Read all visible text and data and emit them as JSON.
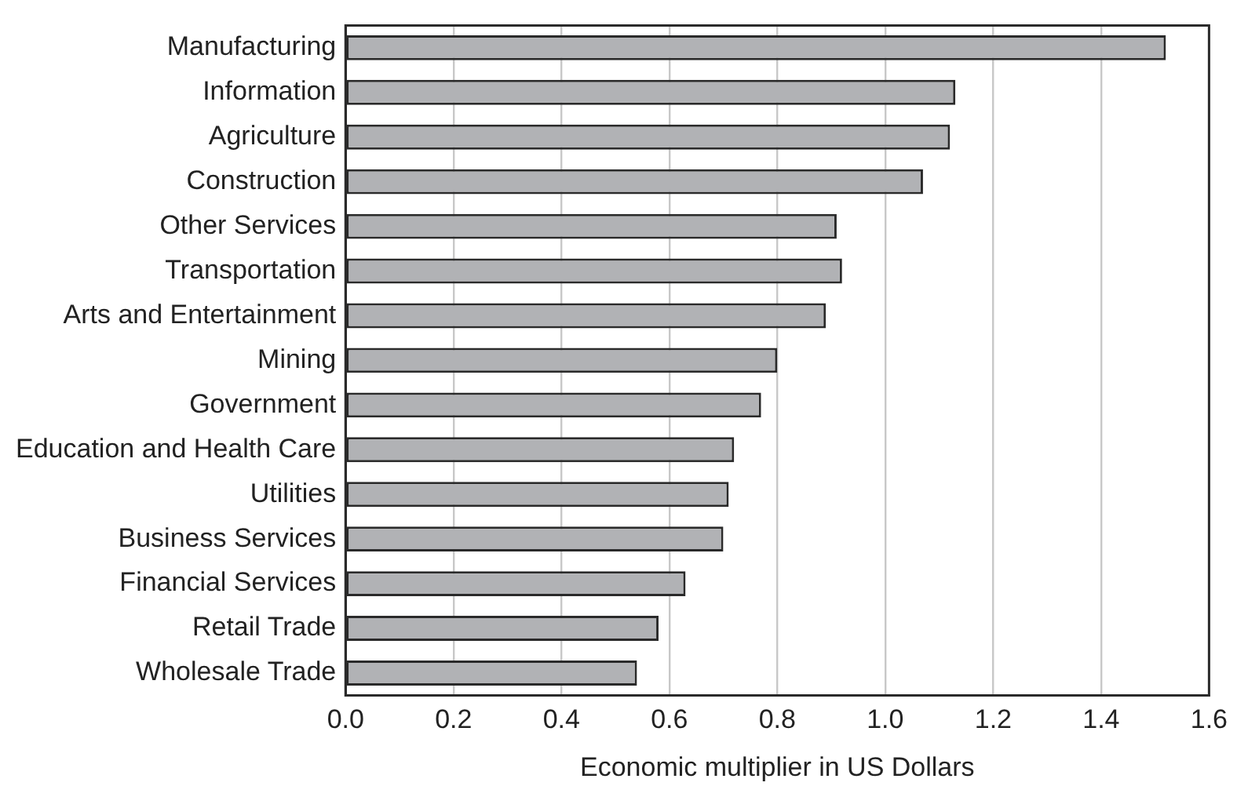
{
  "chart_data": {
    "type": "bar",
    "orientation": "horizontal",
    "xlabel": "Economic multiplier in US Dollars",
    "categories": [
      "Manufacturing",
      "Information",
      "Agriculture",
      "Construction",
      "Other Services",
      "Transportation",
      "Arts and Entertainment",
      "Mining",
      "Government",
      "Education and Health Care",
      "Utilities",
      "Business Services",
      "Financial Services",
      "Retail Trade",
      "Wholesale Trade"
    ],
    "values": [
      1.52,
      1.13,
      1.12,
      1.07,
      0.91,
      0.92,
      0.89,
      0.8,
      0.77,
      0.72,
      0.71,
      0.7,
      0.63,
      0.58,
      0.54
    ],
    "color": "#b1b2b5",
    "xlim": [
      0,
      1.6
    ],
    "xticks": [
      {
        "value": 0,
        "label": "0.0"
      },
      {
        "value": 0.2,
        "label": "0.2"
      },
      {
        "value": 0.4,
        "label": "0.4"
      },
      {
        "value": 0.6,
        "label": "0.6"
      },
      {
        "value": 0.8,
        "label": "0.8"
      },
      {
        "value": 1,
        "label": "1.0"
      },
      {
        "value": 1.2,
        "label": "1.2"
      },
      {
        "value": 1.4,
        "label": "1.4"
      },
      {
        "value": 1.6,
        "label": "1.6"
      }
    ],
    "grid": "x",
    "legend": false
  }
}
